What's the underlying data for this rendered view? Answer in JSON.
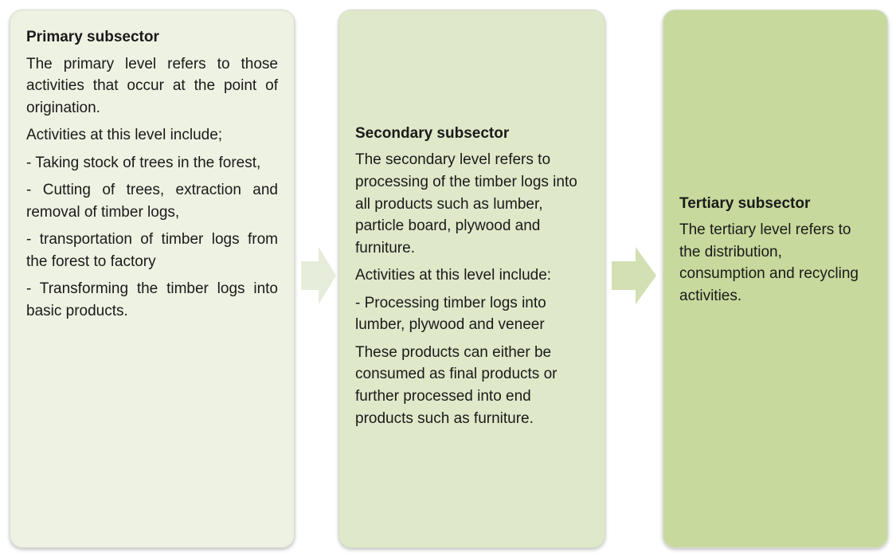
{
  "boxes": [
    {
      "title": "Primary subsector",
      "paragraphs": [
        "The primary level refers to those activities that occur at the point of origination.",
        "Activities at this level include;",
        "- Taking stock of trees in the forest,",
        "- Cutting of trees, extraction and removal of timber logs,",
        "- transportation of timber logs from the forest to factory",
        "- Transforming the timber logs into basic products."
      ]
    },
    {
      "title": "Secondary subsector",
      "paragraphs": [
        "The secondary level refers to processing of the timber logs into all products such as lumber, particle board, plywood and furniture.",
        "Activities at this level include:",
        "- Processing timber logs into lumber, plywood and veneer",
        "These products can either be consumed as final products or further processed into end products such as furniture."
      ]
    },
    {
      "title": "Tertiary subsector",
      "paragraphs": [
        "The tertiary level refers to the distribution, consumption and recycling activities."
      ]
    }
  ]
}
